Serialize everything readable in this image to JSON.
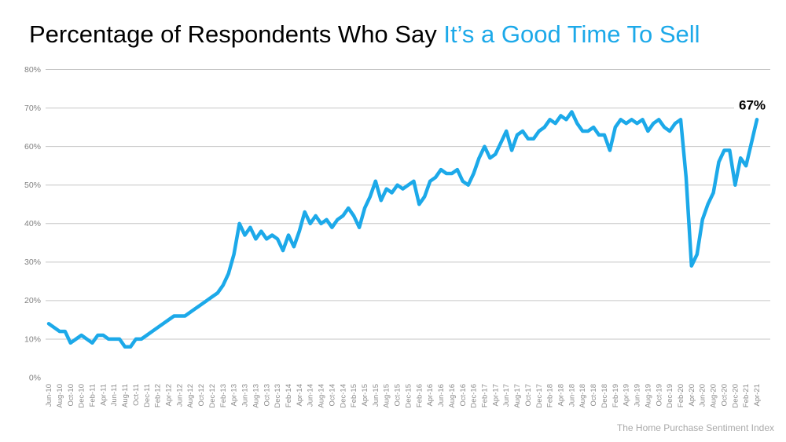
{
  "title": {
    "black_part": "Percentage of Respondents Who Say ",
    "accent_part": "It’s a Good Time To Sell"
  },
  "footer": {
    "source_label": "The Home Purchase Sentiment Index"
  },
  "annotation": {
    "last_value_label": "67%"
  },
  "colors": {
    "accent": "#1ca9e9",
    "line": "#1ca9e9",
    "grid": "#c6c6c6",
    "axis_text": "#808080",
    "footer_text": "#a9a9a9",
    "annotation_text": "#000000",
    "background": "#ffffff"
  },
  "chart_data": {
    "type": "line",
    "title": "Percentage of Respondents Who Say It’s a Good Time To Sell",
    "series_name": "Good Time To Sell %",
    "xlabel": "",
    "ylabel": "",
    "ylim": [
      0,
      80
    ],
    "y_ticks": [
      "0%",
      "10%",
      "20%",
      "30%",
      "40%",
      "50%",
      "60%",
      "70%",
      "80%"
    ],
    "grid": "horizontal",
    "legend": "none",
    "x_tick_step": 2,
    "annotation": {
      "text": "67%",
      "at": "Apr-21"
    },
    "x": [
      "Jun-10",
      "Jul-10",
      "Aug-10",
      "Sep-10",
      "Oct-10",
      "Nov-10",
      "Dec-10",
      "Jan-11",
      "Feb-11",
      "Mar-11",
      "Apr-11",
      "May-11",
      "Jun-11",
      "Jul-11",
      "Aug-11",
      "Sep-11",
      "Oct-11",
      "Nov-11",
      "Dec-11",
      "Jan-12",
      "Feb-12",
      "Mar-12",
      "Apr-12",
      "May-12",
      "Jun-12",
      "Jul-12",
      "Aug-12",
      "Sep-12",
      "Oct-12",
      "Nov-12",
      "Dec-12",
      "Jan-13",
      "Feb-13",
      "Mar-13",
      "Apr-13",
      "May-13",
      "Jun-13",
      "Jul-13",
      "Aug-13",
      "Sep-13",
      "Oct-13",
      "Nov-13",
      "Dec-13",
      "Jan-14",
      "Feb-14",
      "Mar-14",
      "Apr-14",
      "May-14",
      "Jun-14",
      "Jul-14",
      "Aug-14",
      "Sep-14",
      "Oct-14",
      "Nov-14",
      "Dec-14",
      "Jan-15",
      "Feb-15",
      "Mar-15",
      "Apr-15",
      "May-15",
      "Jun-15",
      "Jul-15",
      "Aug-15",
      "Sep-15",
      "Oct-15",
      "Nov-15",
      "Dec-15",
      "Jan-16",
      "Feb-16",
      "Mar-16",
      "Apr-16",
      "May-16",
      "Jun-16",
      "Jul-16",
      "Aug-16",
      "Sep-16",
      "Oct-16",
      "Nov-16",
      "Dec-16",
      "Jan-17",
      "Feb-17",
      "Mar-17",
      "Apr-17",
      "May-17",
      "Jun-17",
      "Jul-17",
      "Aug-17",
      "Sep-17",
      "Oct-17",
      "Nov-17",
      "Dec-17",
      "Jan-18",
      "Feb-18",
      "Mar-18",
      "Apr-18",
      "May-18",
      "Jun-18",
      "Jul-18",
      "Aug-18",
      "Sep-18",
      "Oct-18",
      "Nov-18",
      "Dec-18",
      "Jan-19",
      "Feb-19",
      "Mar-19",
      "Apr-19",
      "May-19",
      "Jun-19",
      "Jul-19",
      "Aug-19",
      "Sep-19",
      "Oct-19",
      "Nov-19",
      "Dec-19",
      "Jan-20",
      "Feb-20",
      "Mar-20",
      "Apr-20",
      "May-20",
      "Jun-20",
      "Jul-20",
      "Aug-20",
      "Sep-20",
      "Oct-20",
      "Nov-20",
      "Dec-20",
      "Jan-21",
      "Feb-21",
      "Mar-21",
      "Apr-21"
    ],
    "values": [
      14,
      13,
      12,
      12,
      9,
      10,
      11,
      10,
      9,
      11,
      11,
      10,
      10,
      10,
      8,
      8,
      10,
      10,
      11,
      12,
      13,
      14,
      15,
      16,
      16,
      16,
      17,
      18,
      19,
      20,
      21,
      22,
      24,
      27,
      32,
      40,
      37,
      39,
      36,
      38,
      36,
      37,
      36,
      33,
      37,
      34,
      38,
      43,
      40,
      42,
      40,
      41,
      39,
      41,
      42,
      44,
      42,
      39,
      44,
      47,
      51,
      46,
      49,
      48,
      50,
      49,
      50,
      51,
      45,
      47,
      51,
      52,
      54,
      53,
      53,
      54,
      51,
      50,
      53,
      57,
      60,
      57,
      58,
      61,
      64,
      59,
      63,
      64,
      62,
      62,
      64,
      65,
      67,
      66,
      68,
      67,
      69,
      66,
      64,
      64,
      65,
      63,
      63,
      59,
      65,
      67,
      66,
      67,
      66,
      67,
      64,
      66,
      67,
      65,
      64,
      66,
      67,
      52,
      29,
      32,
      41,
      45,
      48,
      56,
      59,
      59,
      50,
      57,
      55,
      61,
      67
    ]
  }
}
